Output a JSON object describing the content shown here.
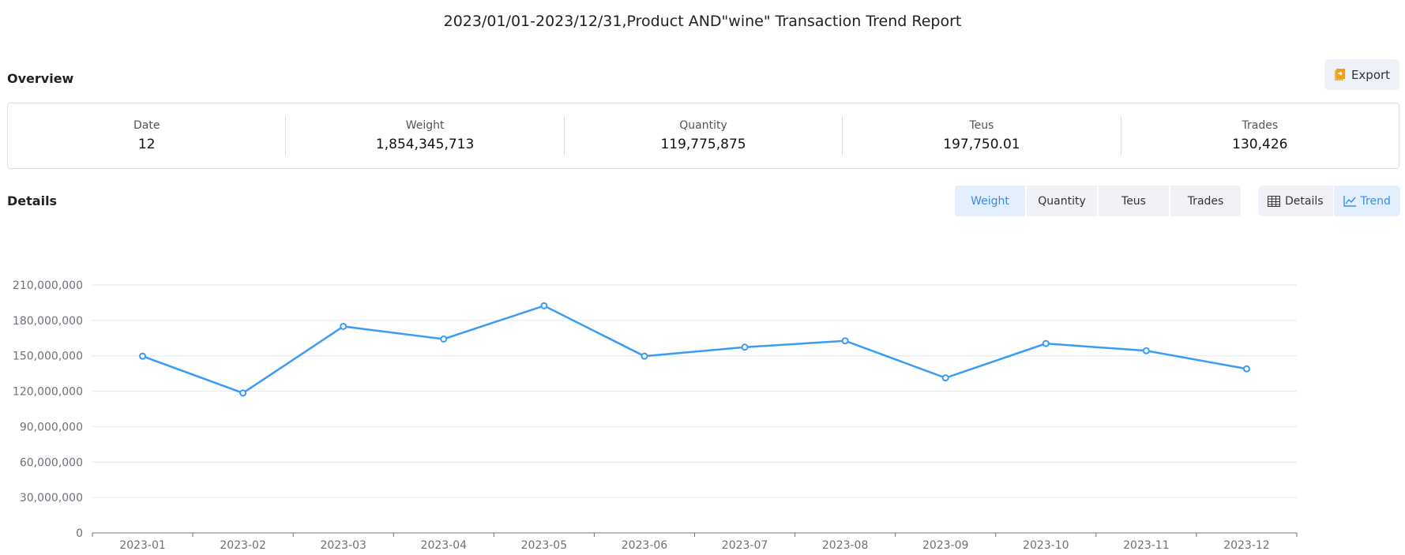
{
  "title": "2023/01/01-2023/12/31,Product AND\"wine\" Transaction Trend Report",
  "overview": {
    "label": "Overview",
    "export_label": "Export",
    "export_icon": "export-file-icon",
    "stats": [
      {
        "label": "Date",
        "value": "12"
      },
      {
        "label": "Weight",
        "value": "1,854,345,713"
      },
      {
        "label": "Quantity",
        "value": "119,775,875"
      },
      {
        "label": "Teus",
        "value": "197,750.01"
      },
      {
        "label": "Trades",
        "value": "130,426"
      }
    ]
  },
  "details": {
    "label": "Details",
    "metric_tabs": [
      {
        "label": "Weight",
        "active": true
      },
      {
        "label": "Quantity",
        "active": false
      },
      {
        "label": "Teus",
        "active": false
      },
      {
        "label": "Trades",
        "active": false
      }
    ],
    "view_toggle": [
      {
        "label": "Details",
        "icon": "table-icon",
        "active": false
      },
      {
        "label": "Trend",
        "icon": "line-chart-icon",
        "active": true
      }
    ]
  },
  "colors": {
    "accent": "#3a9cf5",
    "grid": "#e0e6f1",
    "axis_text": "#6e7079"
  },
  "chart_data": {
    "type": "line",
    "categories": [
      "2023-01",
      "2023-02",
      "2023-03",
      "2023-04",
      "2023-05",
      "2023-06",
      "2023-07",
      "2023-08",
      "2023-09",
      "2023-10",
      "2023-11",
      "2023-12"
    ],
    "values": [
      149700000,
      118500000,
      174900000,
      164200000,
      192400000,
      149700000,
      157300000,
      162700000,
      131300000,
      160400000,
      154300000,
      139000000
    ],
    "ylim": [
      0,
      210000000
    ],
    "yticks": [
      "0",
      "30,000,000",
      "60,000,000",
      "90,000,000",
      "120,000,000",
      "150,000,000",
      "180,000,000",
      "210,000,000"
    ],
    "grid": true,
    "xlabel": "",
    "ylabel": ""
  }
}
